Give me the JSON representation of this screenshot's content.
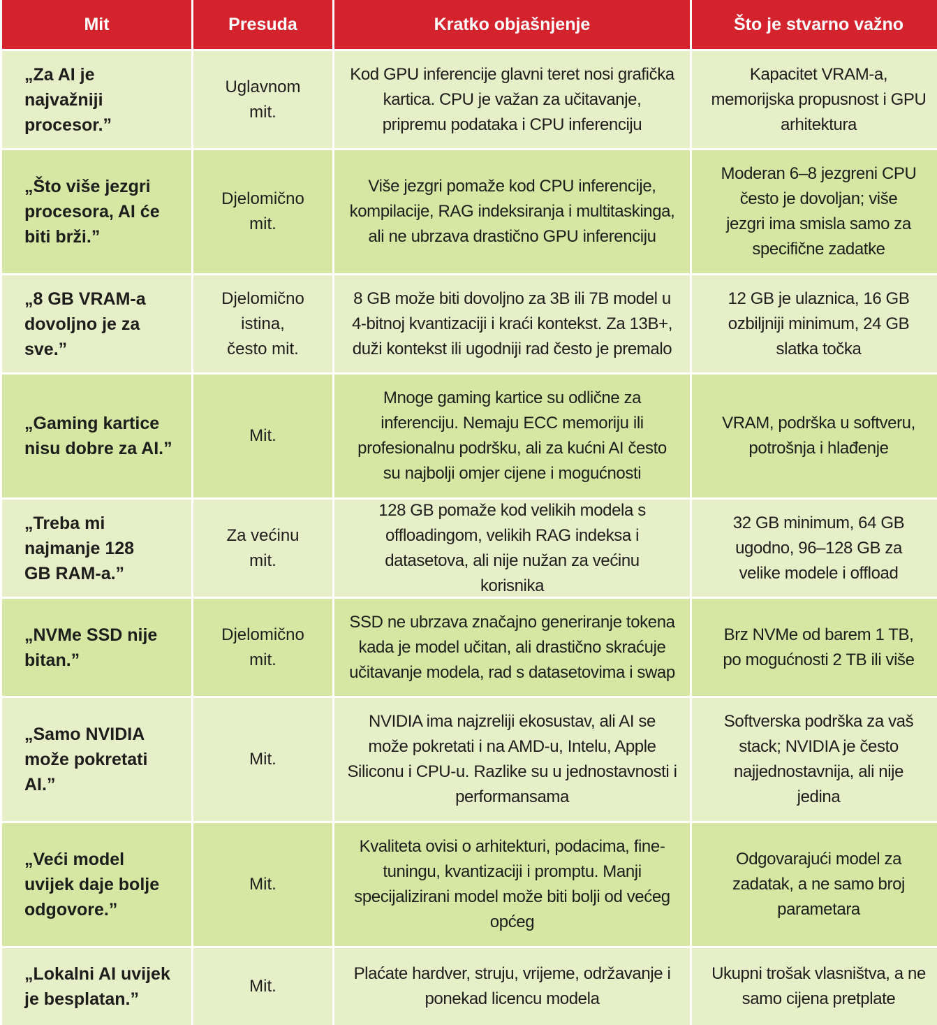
{
  "header": {
    "col_myth": "Mit",
    "col_verdict": "Presuda",
    "col_explanation": "Kratko objašnjenje",
    "col_important": "Što je stvarno važno"
  },
  "rows": [
    {
      "myth": "„Za AI je najvažniji procesor.”",
      "verdict": "Uglavnom mit.",
      "explanation": "Kod GPU inferencije glavni teret nosi grafička kartica. CPU je važan za učitavanje, pripremu podataka i CPU inferenciju",
      "important": "Kapacitet VRAM-a, memorijska propusnost i GPU arhitektura"
    },
    {
      "myth": "„Što više jezgri procesora, AI će biti brži.”",
      "verdict": "Djelomično mit.",
      "explanation": "Više jezgri pomaže kod CPU inferencije, kompilacije, RAG indeksiranja i multitaskinga, ali ne ubrzava drastično GPU inferenciju",
      "important": "Moderan 6–8 jezgreni CPU često je dovoljan; više jezgri ima smisla samo za specifične zadatke"
    },
    {
      "myth": "„8 GB VRAM-a dovoljno je za sve.”",
      "verdict": "Djelomično istina, često mit.",
      "explanation": "8 GB može biti dovoljno za 3B ili 7B model u 4-bitnoj kvantizaciji i kraći kontekst. Za 13B+, duži kontekst ili ugodniji rad često je premalo",
      "important": "12 GB je ulaznica, 16 GB ozbiljniji minimum, 24 GB slatka točka"
    },
    {
      "myth": "„Gaming kartice nisu dobre za AI.”",
      "verdict": "Mit.",
      "explanation": "Mnoge gaming kartice su odlične za inferenciju. Nemaju ECC memoriju ili profesionalnu podršku, ali za kućni AI često su najbolji omjer cijene i mogućnosti",
      "important": "VRAM, podrška u softveru, potrošnja i hlađenje"
    },
    {
      "myth": "„Treba mi najmanje 128 GB RAM-a.”",
      "verdict": "Za većinu mit.",
      "explanation": "128 GB pomaže kod velikih modela s offloadingom, velikih RAG indeksa i datasetova, ali nije nužan za većinu korisnika",
      "important": "32 GB minimum, 64 GB ugodno, 96–128 GB za velike modele i offload"
    },
    {
      "myth": "„NVMe SSD nije bitan.”",
      "verdict": "Djelomično mit.",
      "explanation": "SSD ne ubrzava značajno generiranje tokena kada je model učitan, ali drastično skraćuje učitavanje modela, rad s datasetovima i swap",
      "important": "Brz NVMe od barem 1 TB, po mogućnosti 2 TB ili više"
    },
    {
      "myth": "„Samo NVIDIA može pokretati AI.”",
      "verdict": "Mit.",
      "explanation": "NVIDIA ima najzreliji ekosustav, ali AI se može pokretati i na AMD-u, Intelu, Apple Siliconu i CPU-u. Razlike su u jednostavnosti i performansama",
      "important": "Softverska podrška za vaš stack; NVIDIA je često najjednostavnija, ali nije jedina"
    },
    {
      "myth": "„Veći model uvijek daje bolje odgovore.”",
      "verdict": "Mit.",
      "explanation": "Kvaliteta ovisi o arhitekturi, podacima, fine-tuningu, kvantizaciji i promptu. Manji specijalizirani model može biti bolji od većeg općeg",
      "important": "Odgovarajući model za zadatak, a ne samo broj parametara"
    },
    {
      "myth": "„Lokalni AI uvijek je besplatan.”",
      "verdict": "Mit.",
      "explanation": "Plaćate hardver, struju, vrijeme, održavanje i ponekad licencu modela",
      "important": "Ukupni trošak vlasništva, a ne samo cijena pretplate"
    }
  ]
}
